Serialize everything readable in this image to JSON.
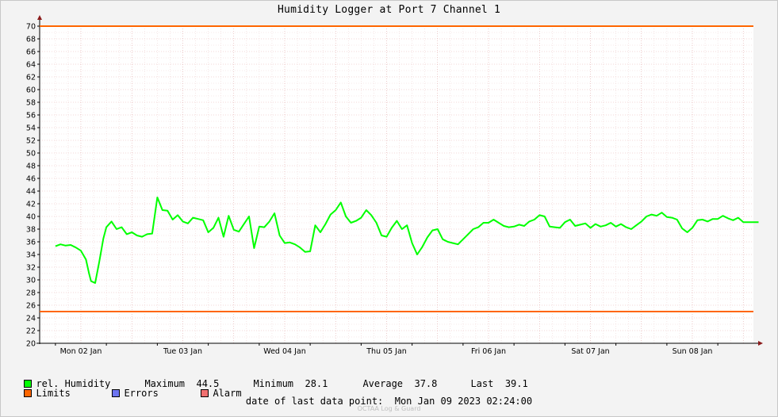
{
  "window": {
    "title": "Humidity Logger at Port 7 Channel 1"
  },
  "legend": {
    "series_label": "rel. Humidity",
    "series_color": "#00ff00",
    "stats": [
      {
        "label": "Maximum",
        "value": "44.5"
      },
      {
        "label": "Minimum",
        "value": "28.1"
      },
      {
        "label": "Average",
        "value": "37.8"
      },
      {
        "label": "Last",
        "value": "39.1"
      }
    ],
    "limits_label": "Limits",
    "limits_color": "#ff6600",
    "errors_label": "Errors",
    "errors_color": "#6c74f0",
    "alarm_label": "Alarm",
    "alarm_color": "#f07070"
  },
  "footer": {
    "last_point_label": "date of last data point:",
    "last_point_value": "Mon Jan 09 2023 02:24:00",
    "watermark": "OCTAA Log & Guard"
  },
  "chart_data": {
    "type": "line",
    "title": "Humidity Logger at Port 7 Channel 1",
    "xlabel": "",
    "ylabel": "",
    "ylim": [
      20,
      70
    ],
    "y_ticks": [
      20,
      22,
      24,
      26,
      28,
      30,
      32,
      34,
      36,
      38,
      40,
      42,
      44,
      46,
      48,
      50,
      52,
      54,
      56,
      58,
      60,
      62,
      64,
      66,
      68,
      70
    ],
    "xlim": [
      -0.25,
      6.65
    ],
    "x_tick_labels": [
      "Mon 02 Jan",
      "Tue 03 Jan",
      "Wed 04 Jan",
      "Thu 05 Jan",
      "Fri 06 Jan",
      "Sat 07 Jan",
      "Sun 08 Jan"
    ],
    "grid": true,
    "limits": [
      70,
      25
    ],
    "series": [
      {
        "name": "rel. Humidity",
        "color": "#00ff00",
        "x": [
          -0.25,
          -0.2,
          -0.15,
          -0.1,
          -0.05,
          0,
          0.05,
          0.08,
          0.1,
          0.14,
          0.18,
          0.22,
          0.25,
          0.3,
          0.35,
          0.4,
          0.45,
          0.5,
          0.55,
          0.6,
          0.65,
          0.7,
          0.75,
          0.8,
          0.85,
          0.9,
          0.95,
          1.0,
          1.05,
          1.1,
          1.15,
          1.2,
          1.25,
          1.3,
          1.35,
          1.4,
          1.45,
          1.5,
          1.55,
          1.6,
          1.65,
          1.7,
          1.75,
          1.8,
          1.85,
          1.9,
          1.95,
          2.0,
          2.05,
          2.1,
          2.15,
          2.2,
          2.25,
          2.3,
          2.35,
          2.4,
          2.45,
          2.5,
          2.55,
          2.6,
          2.65,
          2.7,
          2.75,
          2.8,
          2.85,
          2.9,
          2.95,
          3.0,
          3.05,
          3.1,
          3.15,
          3.2,
          3.25,
          3.3,
          3.35,
          3.4,
          3.45,
          3.5,
          3.55,
          3.6,
          3.65,
          3.7,
          3.75,
          3.8,
          3.85,
          3.9,
          3.95,
          4.0,
          4.05,
          4.1,
          4.15,
          4.2,
          4.25,
          4.3,
          4.35,
          4.4,
          4.45,
          4.5,
          4.55,
          4.6,
          4.65,
          4.7,
          4.75,
          4.8,
          4.85,
          4.9,
          4.95,
          5.0,
          5.05,
          5.1,
          5.15,
          5.2,
          5.25,
          5.3,
          5.35,
          5.4,
          5.45,
          5.5,
          5.55,
          5.6,
          5.65,
          5.7,
          5.75,
          5.8,
          5.85,
          5.9,
          5.95,
          6.0,
          6.05,
          6.1,
          6.15,
          6.2,
          6.25,
          6.3,
          6.35,
          6.4,
          6.45,
          6.5,
          6.55,
          6.6,
          6.65
        ],
        "values": [
          35.3,
          35.6,
          35.4,
          35.5,
          35.1,
          34.6,
          33.2,
          31.0,
          29.8,
          29.5,
          32.8,
          36.5,
          38.3,
          39.2,
          38.0,
          38.3,
          37.2,
          37.5,
          37.0,
          36.8,
          37.2,
          37.3,
          43.0,
          41.0,
          40.9,
          39.5,
          40.2,
          39.2,
          38.9,
          39.8,
          39.6,
          39.4,
          37.5,
          38.2,
          39.8,
          36.8,
          40.1,
          37.9,
          37.6,
          38.8,
          40.0,
          35.0,
          38.4,
          38.3,
          39.2,
          40.5,
          37.0,
          35.8,
          35.9,
          35.6,
          35.1,
          34.4,
          34.5,
          38.6,
          37.5,
          38.8,
          40.3,
          41.0,
          42.2,
          40.0,
          39.0,
          39.3,
          39.8,
          41.0,
          40.2,
          39.0,
          37.0,
          36.8,
          38.2,
          39.3,
          38.0,
          38.6,
          35.8,
          34.0,
          35.2,
          36.7,
          37.8,
          38.0,
          36.4,
          36.0,
          35.8,
          35.6,
          36.4,
          37.2,
          38.0,
          38.3,
          39.0,
          39.0,
          39.5,
          39.0,
          38.5,
          38.3,
          38.4,
          38.7,
          38.5,
          39.2,
          39.5,
          40.2,
          40.0,
          38.4,
          38.3,
          38.2,
          39.1,
          39.5,
          38.5,
          38.7,
          38.9,
          38.2,
          38.8,
          38.4,
          38.6,
          39.0,
          38.4,
          38.8,
          38.3,
          38.0,
          38.6,
          39.2,
          40.0,
          40.3,
          40.1,
          40.6,
          39.9,
          39.8,
          39.5,
          38.1,
          37.5,
          38.2,
          39.4,
          39.5,
          39.2,
          39.6,
          39.6,
          40.1,
          39.7,
          39.4,
          39.8,
          39.1,
          39.1,
          39.1,
          39.1
        ]
      }
    ]
  }
}
